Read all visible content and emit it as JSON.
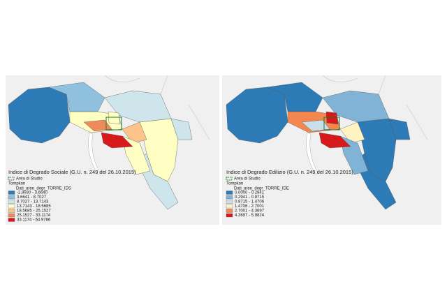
{
  "maps": [
    {
      "title": "Indice di Degrado Sociale (G.U. n. 249 del 26.10.2015)",
      "study_area": "Area di Studio",
      "layer": "Tompkon",
      "field": "Dati_aree_degr_TORRE_IDS",
      "classes": [
        {
          "label": "-2.9930 - 3.6640",
          "color": "#2c7bb6"
        },
        {
          "label": "3.6641 - 8.7027",
          "color": "#8fc1de"
        },
        {
          "label": "8.7027 - 13.7143",
          "color": "#cfe5ec"
        },
        {
          "label": "13.7143 - 18.5685",
          "color": "#ffffc4"
        },
        {
          "label": "18.5685 - 25.1527",
          "color": "#fdc48a"
        },
        {
          "label": "25.1527 - 33.1174",
          "color": "#ee8a5c"
        },
        {
          "label": "33.1174 - 64.9786",
          "color": "#d7191c"
        }
      ]
    },
    {
      "title": "Indice di Degrado Edilizio (G.U. n. 249 del 26.10.2015)",
      "study_area": "Area di Studio",
      "layer": "Tompkon",
      "field": "Dati_aree_degr_TORRE_IDE",
      "classes": [
        {
          "label": "0.0000 - 0.2941",
          "color": "#2c7bb6"
        },
        {
          "label": "0.2941 - 0.8715",
          "color": "#80b3d6"
        },
        {
          "label": "0.8715 - 1.4706",
          "color": "#c9dfe9"
        },
        {
          "label": "1.4706 - 2.7001",
          "color": "#fff3c4"
        },
        {
          "label": "2.7001 - 4.3697",
          "color": "#f4874f"
        },
        {
          "label": "4.3697 - 5.9824",
          "color": "#d7191c"
        }
      ]
    }
  ]
}
